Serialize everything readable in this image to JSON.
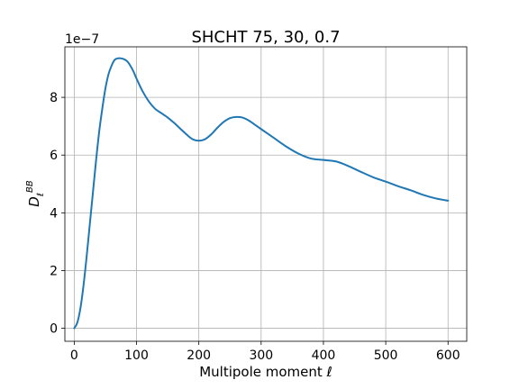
{
  "chart_data": {
    "type": "line",
    "title": "SHCHT 75, 30, 0.7",
    "xlabel": "Multipole moment ℓ",
    "ylabel_main": "D",
    "ylabel_sub": "ℓ",
    "ylabel_sup": "BB",
    "y_offset_label": "1e−7",
    "xlim": [
      -15,
      630
    ],
    "ylim": [
      -0.45,
      9.75
    ],
    "x_ticks": [
      0,
      100,
      200,
      300,
      400,
      500,
      600
    ],
    "y_ticks": [
      0,
      2,
      4,
      6,
      8
    ],
    "grid": true,
    "colors": {
      "line": "#1f77b4"
    },
    "series": [
      {
        "x": [
          0,
          5,
          10,
          15,
          20,
          25,
          30,
          35,
          40,
          45,
          50,
          55,
          60,
          65,
          70,
          75,
          80,
          85,
          90,
          95,
          100,
          110,
          120,
          130,
          140,
          150,
          160,
          170,
          180,
          190,
          200,
          210,
          220,
          230,
          240,
          250,
          260,
          270,
          280,
          290,
          300,
          320,
          340,
          360,
          380,
          400,
          420,
          440,
          460,
          480,
          500,
          520,
          540,
          560,
          580,
          600
        ],
        "y": [
          0.0,
          0.2,
          0.7,
          1.5,
          2.5,
          3.6,
          4.7,
          5.8,
          6.8,
          7.6,
          8.3,
          8.8,
          9.1,
          9.3,
          9.35,
          9.35,
          9.32,
          9.25,
          9.1,
          8.9,
          8.65,
          8.2,
          7.85,
          7.6,
          7.45,
          7.3,
          7.12,
          6.92,
          6.72,
          6.55,
          6.5,
          6.55,
          6.72,
          6.95,
          7.15,
          7.28,
          7.32,
          7.3,
          7.2,
          7.05,
          6.9,
          6.6,
          6.3,
          6.05,
          5.88,
          5.83,
          5.78,
          5.62,
          5.42,
          5.23,
          5.08,
          4.92,
          4.78,
          4.62,
          4.5,
          4.42
        ]
      }
    ]
  }
}
